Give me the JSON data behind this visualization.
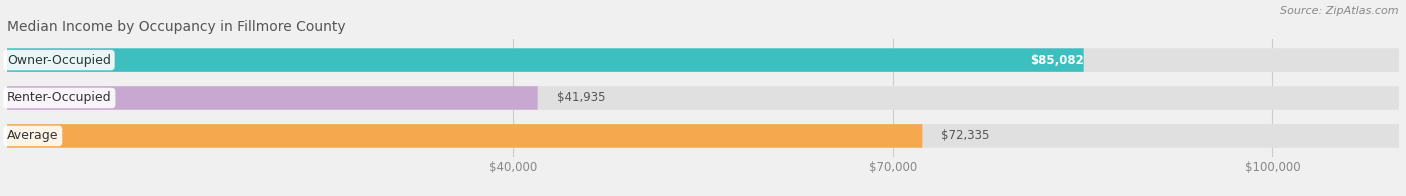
{
  "title": "Median Income by Occupancy in Fillmore County",
  "source": "Source: ZipAtlas.com",
  "categories": [
    "Owner-Occupied",
    "Renter-Occupied",
    "Average"
  ],
  "values": [
    85082,
    41935,
    72335
  ],
  "bar_colors": [
    "#3dbfbf",
    "#c8a8d0",
    "#f5a84e"
  ],
  "value_labels": [
    "$85,082",
    "$41,935",
    "$72,335"
  ],
  "x_ticks": [
    40000,
    70000,
    100000
  ],
  "x_tick_labels": [
    "$40,000",
    "$70,000",
    "$100,000"
  ],
  "xlim_max": 110000,
  "bar_height": 0.62,
  "background_color": "#f0f0f0",
  "bar_bg_color": "#e0e0e0",
  "title_fontsize": 10,
  "label_fontsize": 9,
  "value_fontsize": 8.5,
  "tick_fontsize": 8.5,
  "source_fontsize": 8
}
